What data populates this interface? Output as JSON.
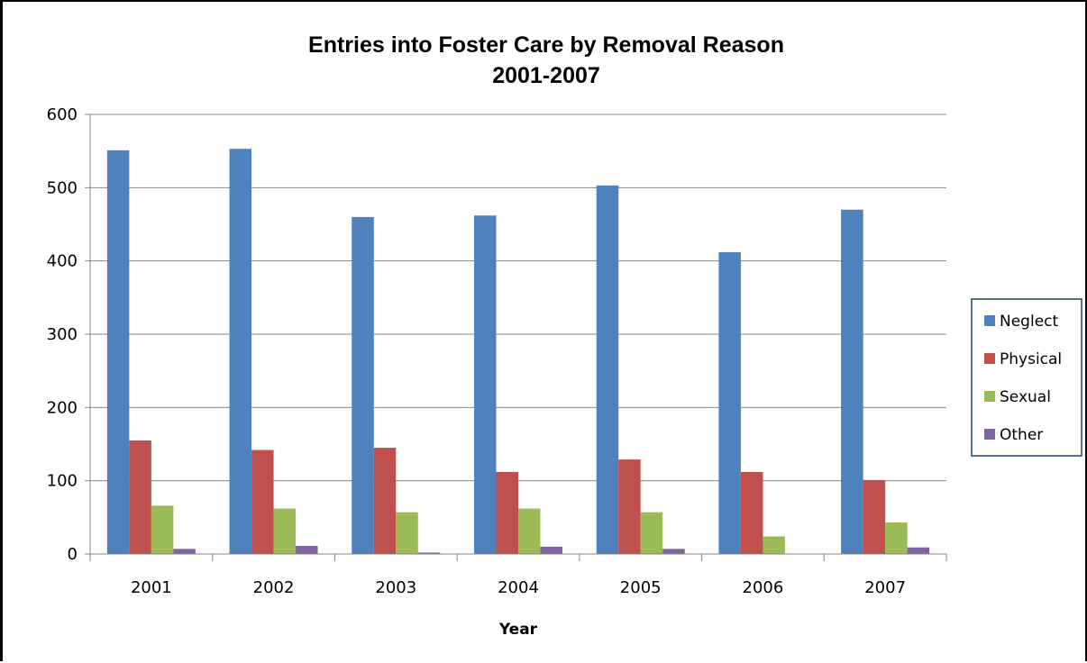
{
  "chart_data": {
    "type": "bar",
    "title": "Entries into Foster Care by Removal Reason",
    "subtitle": "2001-2007",
    "xlabel": "Year",
    "ylabel": "",
    "categories": [
      "2001",
      "2002",
      "2003",
      "2004",
      "2005",
      "2006",
      "2007"
    ],
    "series": [
      {
        "name": "Neglect",
        "color": "#4f81bd",
        "values": [
          551,
          553,
          460,
          462,
          503,
          412,
          470
        ]
      },
      {
        "name": "Physical",
        "color": "#c0504d",
        "values": [
          155,
          142,
          145,
          112,
          129,
          112,
          101
        ]
      },
      {
        "name": "Sexual",
        "color": "#9bbb59",
        "values": [
          66,
          62,
          57,
          62,
          57,
          24,
          43
        ]
      },
      {
        "name": "Other",
        "color": "#8064a2",
        "values": [
          7,
          11,
          2,
          10,
          7,
          0,
          9
        ]
      }
    ],
    "ylim": [
      0,
      600
    ],
    "yticks": [
      0,
      100,
      200,
      300,
      400,
      500,
      600
    ],
    "grid": true,
    "legend_position": "right"
  }
}
